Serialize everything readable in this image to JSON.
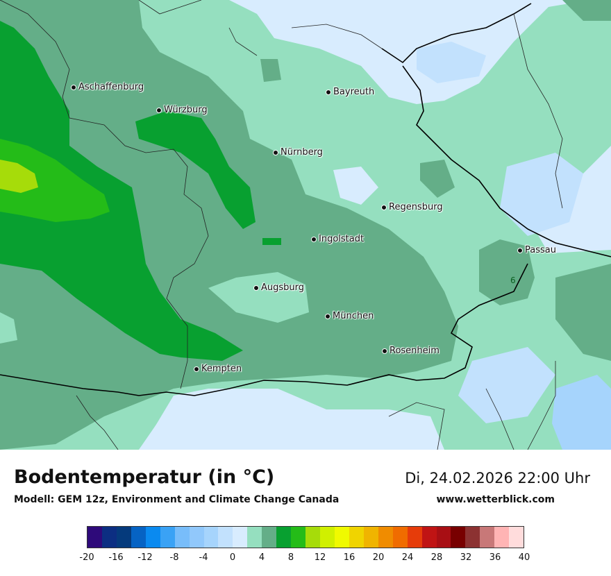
{
  "map": {
    "cities": [
      {
        "name": "Aschaffenburg"
      },
      {
        "name": "Würzburg"
      },
      {
        "name": "Bayreuth"
      },
      {
        "name": "Nürnberg"
      },
      {
        "name": "Regensburg"
      },
      {
        "name": "Ingolstadt"
      },
      {
        "name": "Passau"
      },
      {
        "name": "Augsburg"
      },
      {
        "name": "München"
      },
      {
        "name": "Rosenheim"
      },
      {
        "name": "Kempten"
      }
    ],
    "point_value": "6"
  },
  "footer": {
    "title": "Bodentemperatur (in °C)",
    "subtitle": "Modell: GEM 12z, Environment and Climate Change Canada",
    "datetime": "Di, 24.02.2026 22:00 Uhr",
    "website": "www.wetterblick.com"
  },
  "legend": {
    "colors": [
      "#2e0a7a",
      "#0c2e82",
      "#053a7c",
      "#0663c4",
      "#0a8af0",
      "#3aa2f5",
      "#78bdfa",
      "#91c8fb",
      "#a6d4fc",
      "#c2e1fd",
      "#d8ecfe",
      "#95dfbf",
      "#64ae88",
      "#08a030",
      "#24bc18",
      "#a6dc0a",
      "#d0f000",
      "#f0fa00",
      "#f0d400",
      "#f0b400",
      "#f08c00",
      "#f06c00",
      "#e63c0a",
      "#c01414",
      "#a80f14",
      "#780000",
      "#8c3232",
      "#c87878",
      "#ffb4b4",
      "#ffdcdc"
    ],
    "ticks": [
      "-20",
      "-16",
      "-12",
      "-8",
      "-4",
      "0",
      "4",
      "8",
      "12",
      "16",
      "20",
      "24",
      "28",
      "32",
      "36",
      "40"
    ]
  }
}
